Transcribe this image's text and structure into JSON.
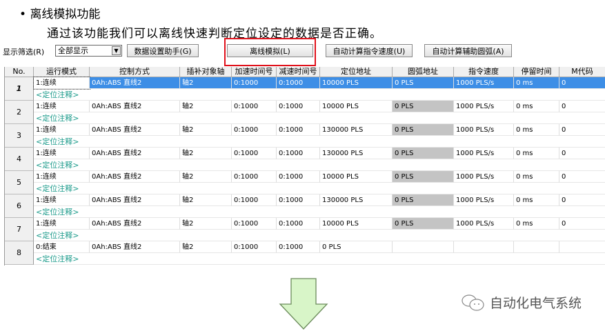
{
  "heading": {
    "bullet": "•",
    "title": "离线模拟功能",
    "subtitle": "通过该功能我们可以离线快速判断定位设定的数据是否正确。"
  },
  "toolbar": {
    "filter_label": "显示筛选(R)",
    "filter_value": "全部显示",
    "data_assist": "数据设置助手(G)",
    "offline_sim": "离线模拟(L)",
    "auto_speed": "自动计算指令速度(U)",
    "auto_arc": "自动计算辅助圆弧(A)"
  },
  "table": {
    "columns": [
      "No.",
      "运行模式",
      "控制方式",
      "插补对象轴",
      "加速时间号",
      "减速时间号",
      "定位地址",
      "圆弧地址",
      "指令速度",
      "停留时间",
      "M代码"
    ],
    "note_label": "<定位注释>",
    "selected_row": 1,
    "rows": [
      {
        "no": "1",
        "cells": [
          "1:连续",
          "0Ah:ABS 直线2",
          "轴2",
          "0:1000",
          "0:1000",
          "10000 PLS",
          "0 PLS",
          "1000 PLS/s",
          "0 ms",
          "0"
        ]
      },
      {
        "no": "2",
        "cells": [
          "1:连续",
          "0Ah:ABS 直线2",
          "轴2",
          "0:1000",
          "0:1000",
          "10000 PLS",
          "0 PLS",
          "1000 PLS/s",
          "0 ms",
          "0"
        ]
      },
      {
        "no": "3",
        "cells": [
          "1:连续",
          "0Ah:ABS 直线2",
          "轴2",
          "0:1000",
          "0:1000",
          "130000 PLS",
          "0 PLS",
          "1000 PLS/s",
          "0 ms",
          "0"
        ]
      },
      {
        "no": "4",
        "cells": [
          "1:连续",
          "0Ah:ABS 直线2",
          "轴2",
          "0:1000",
          "0:1000",
          "130000 PLS",
          "0 PLS",
          "1000 PLS/s",
          "0 ms",
          "0"
        ]
      },
      {
        "no": "5",
        "cells": [
          "1:连续",
          "0Ah:ABS 直线2",
          "轴2",
          "0:1000",
          "0:1000",
          "10000 PLS",
          "0 PLS",
          "1000 PLS/s",
          "0 ms",
          "0"
        ]
      },
      {
        "no": "6",
        "cells": [
          "1:连续",
          "0Ah:ABS 直线2",
          "轴2",
          "0:1000",
          "0:1000",
          "130000 PLS",
          "0 PLS",
          "1000 PLS/s",
          "0 ms",
          "0"
        ]
      },
      {
        "no": "7",
        "cells": [
          "1:连续",
          "0Ah:ABS 直线2",
          "轴2",
          "0:1000",
          "0:1000",
          "10000 PLS",
          "0 PLS",
          "1000 PLS/s",
          "0 ms",
          "0"
        ]
      },
      {
        "no": "8",
        "cells": [
          "0:结束",
          "0Ah:ABS 直线2",
          "轴2",
          "0:1000",
          "0:1000",
          "0 PLS",
          "",
          "",
          "",
          ""
        ]
      }
    ]
  },
  "watermark": {
    "text": "自动化电气系统",
    "icon": "wechat-icon"
  },
  "colors": {
    "selection": "#3d8ee6",
    "highlight_box": "#e0101a",
    "note": "#1a9a8a",
    "arrow_fill": "#d8f5c8"
  }
}
